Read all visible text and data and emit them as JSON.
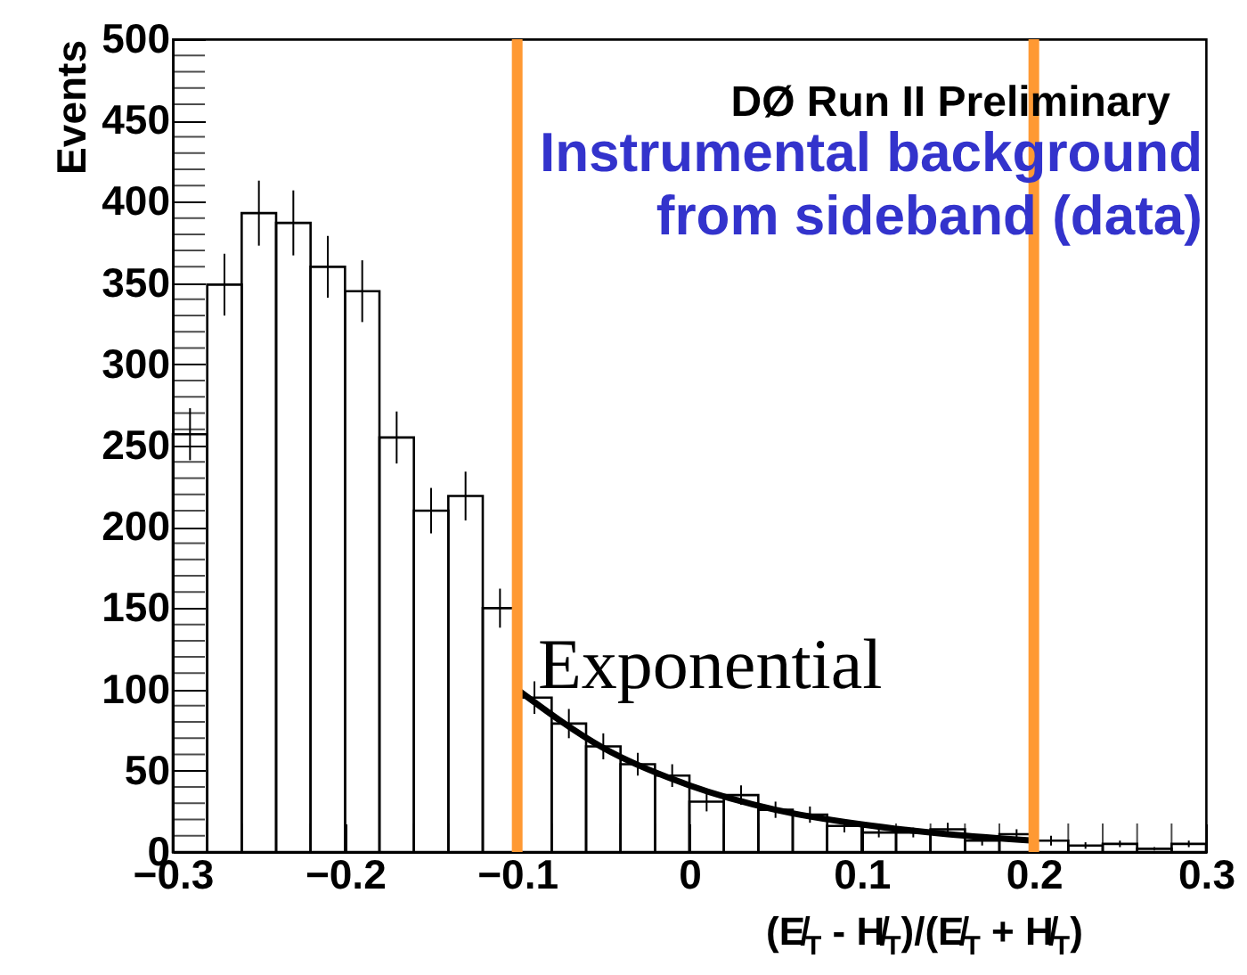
{
  "chart_data": {
    "type": "histogram",
    "bins": [
      -0.3,
      -0.28,
      -0.26,
      -0.24,
      -0.22,
      -0.2,
      -0.18,
      -0.16,
      -0.14,
      -0.12,
      -0.1,
      -0.08,
      -0.06,
      -0.04,
      -0.02,
      0,
      0.02,
      0.04,
      0.06,
      0.08,
      0.1,
      0.12,
      0.14,
      0.16,
      0.18,
      0.2,
      0.22,
      0.24,
      0.26,
      0.28,
      0.3
    ],
    "values": [
      257,
      349,
      393,
      387,
      360,
      345,
      255,
      210,
      219,
      150,
      95,
      79,
      65,
      54,
      47,
      31,
      35,
      26,
      23,
      16,
      12,
      12,
      14,
      7,
      11,
      7,
      4,
      5,
      2,
      5
    ],
    "errors": [
      16,
      19,
      20,
      20,
      19,
      19,
      16,
      14,
      15,
      12,
      10,
      9,
      8,
      7,
      7,
      6,
      6,
      5,
      5,
      4,
      3,
      3,
      4,
      3,
      3,
      3,
      2,
      2,
      1,
      2
    ],
    "color": "#000000",
    "series": [
      {
        "type": "line",
        "color": "#000000",
        "x": [
          -0.1,
          -0.05,
          0,
          0.05,
          0.1,
          0.15,
          0.2
        ],
        "values": [
          100,
          64,
          41,
          26,
          17,
          11,
          7
        ]
      }
    ],
    "ref_lines": [
      {
        "axis": "x",
        "value": -0.1,
        "color": "#ff9933"
      },
      {
        "axis": "x",
        "value": 0.2,
        "color": "#ff9933"
      }
    ],
    "xlim": [
      -0.3,
      0.3
    ],
    "xticks": [
      -0.3,
      -0.2,
      -0.1,
      0,
      0.1,
      0.2,
      0.3
    ],
    "ylim": [
      0,
      500
    ],
    "yticks": [
      0,
      50,
      100,
      150,
      200,
      250,
      300,
      350,
      400,
      450,
      500
    ],
    "xlabel": "(E̸$_{T}$ - H̸$_{T}$)/(E̸$_{T}$ + H̸$_{T}$)",
    "ylabel": "Events",
    "annotations": [
      "DØ Run II Preliminary",
      "Instrumental background from sideband (data)",
      "Exponential"
    ],
    "grid": false
  }
}
